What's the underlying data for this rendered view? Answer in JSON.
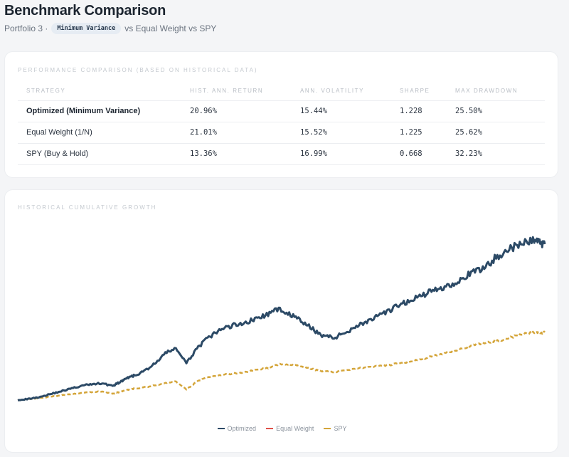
{
  "header": {
    "title": "Benchmark Comparison",
    "portfolio": "Portfolio 3 ·",
    "method_pill": "Minimum Variance",
    "comparison": "vs Equal Weight vs SPY"
  },
  "performance": {
    "title": "PERFORMANCE COMPARISON (BASED ON HISTORICAL DATA)",
    "columns": [
      "STRATEGY",
      "HIST. ANN. RETURN",
      "ANN. VOLATILITY",
      "SHARPE",
      "MAX DRAWDOWN"
    ],
    "rows": [
      {
        "strategy": "Optimized (Minimum Variance)",
        "ret": "20.96%",
        "vol": "15.44%",
        "sharpe": "1.228",
        "mdd": "25.50%"
      },
      {
        "strategy": "Equal Weight (1/N)",
        "ret": "21.01%",
        "vol": "15.52%",
        "sharpe": "1.225",
        "mdd": "25.62%"
      },
      {
        "strategy": "SPY (Buy & Hold)",
        "ret": "13.36%",
        "vol": "16.99%",
        "sharpe": "0.668",
        "mdd": "32.23%"
      }
    ]
  },
  "growth_chart": {
    "title": "HISTORICAL CUMULATIVE GROWTH"
  },
  "colors": {
    "optimized": "#2c4a66",
    "equal_weight": "#e0524a",
    "spy": "#d4a53a"
  },
  "chart_data": {
    "type": "line",
    "title": "HISTORICAL CUMULATIVE GROWTH",
    "ylim": [
      0.8,
      10.2
    ],
    "grid": false,
    "legend_position": "bottom-center",
    "x": [
      0,
      2,
      4,
      6,
      8,
      10,
      12,
      14,
      16,
      18,
      19,
      20,
      21,
      22,
      24,
      26,
      28,
      30,
      32,
      34,
      36,
      38,
      40,
      42,
      44,
      46,
      48,
      50,
      52,
      54,
      56,
      58,
      60,
      62,
      64,
      66,
      68,
      70,
      72,
      74,
      76,
      78,
      80,
      82,
      84,
      86,
      88,
      90,
      92,
      94,
      96,
      98,
      99,
      100
    ],
    "series": [
      {
        "name": "Optimized",
        "values": [
          1.0,
          1.05,
          1.15,
          1.3,
          1.45,
          1.6,
          1.75,
          1.85,
          1.9,
          1.75,
          1.9,
          2.05,
          2.2,
          2.3,
          2.55,
          2.95,
          3.5,
          3.8,
          2.95,
          3.8,
          4.3,
          4.7,
          4.95,
          5.1,
          5.25,
          5.45,
          5.7,
          5.9,
          5.55,
          5.2,
          4.8,
          4.45,
          4.35,
          4.6,
          4.95,
          5.2,
          5.45,
          5.7,
          6.05,
          6.3,
          6.55,
          6.8,
          7.0,
          7.2,
          7.5,
          7.8,
          8.05,
          8.5,
          8.95,
          9.2,
          9.45,
          9.65,
          9.5,
          9.4
        ]
      },
      {
        "name": "Equal Weight",
        "values": [
          1.0,
          1.05,
          1.15,
          1.3,
          1.45,
          1.6,
          1.75,
          1.85,
          1.9,
          1.75,
          1.9,
          2.05,
          2.2,
          2.3,
          2.55,
          2.95,
          3.5,
          3.8,
          2.95,
          3.8,
          4.3,
          4.7,
          4.95,
          5.1,
          5.25,
          5.45,
          5.7,
          5.9,
          5.55,
          5.2,
          4.8,
          4.45,
          4.35,
          4.6,
          4.95,
          5.2,
          5.45,
          5.7,
          6.05,
          6.3,
          6.55,
          6.8,
          7.0,
          7.2,
          7.5,
          7.8,
          8.05,
          8.5,
          8.95,
          9.2,
          9.45,
          9.65,
          9.5,
          9.4
        ]
      },
      {
        "name": "SPY",
        "values": [
          1.0,
          1.04,
          1.1,
          1.17,
          1.24,
          1.3,
          1.37,
          1.42,
          1.46,
          1.33,
          1.4,
          1.48,
          1.55,
          1.6,
          1.68,
          1.78,
          1.9,
          2.0,
          1.55,
          2.0,
          2.2,
          2.3,
          2.4,
          2.45,
          2.55,
          2.65,
          2.75,
          2.95,
          2.9,
          2.8,
          2.65,
          2.55,
          2.5,
          2.6,
          2.7,
          2.75,
          2.8,
          2.85,
          2.95,
          3.05,
          3.15,
          3.3,
          3.45,
          3.6,
          3.75,
          3.9,
          4.05,
          4.15,
          4.25,
          4.4,
          4.55,
          4.65,
          4.6,
          4.65
        ]
      }
    ]
  }
}
